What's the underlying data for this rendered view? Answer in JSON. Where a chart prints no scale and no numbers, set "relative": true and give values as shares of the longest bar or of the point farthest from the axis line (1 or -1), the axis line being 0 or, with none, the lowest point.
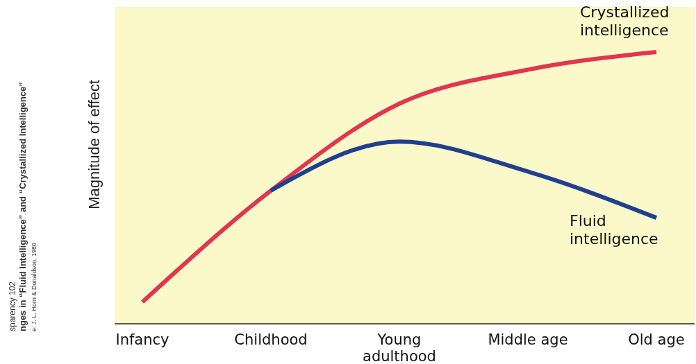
{
  "chart_data": {
    "type": "line",
    "ylabel": "Magnitude of effect",
    "relative": true,
    "marker": "none",
    "line_style": "solid",
    "categories": [
      "Infancy",
      "Childhood",
      "Young adulthood",
      "Middle age",
      "Old age"
    ],
    "series": [
      {
        "name": "Crystallized intelligence",
        "color": "#e0364f",
        "values": [
          0.08,
          0.49,
          0.81,
          0.935,
          1.0
        ]
      },
      {
        "name": "Fluid intelligence",
        "color": "#1f3f8f",
        "values": [
          null,
          0.49,
          0.67,
          0.56,
          0.39
        ]
      }
    ],
    "annotations": [
      "sparency 102",
      "nges in “Fluid Intelligence” and “Crystallized Intelligence”",
      "e: J. L. Horn & Donaldson, 1980"
    ]
  }
}
